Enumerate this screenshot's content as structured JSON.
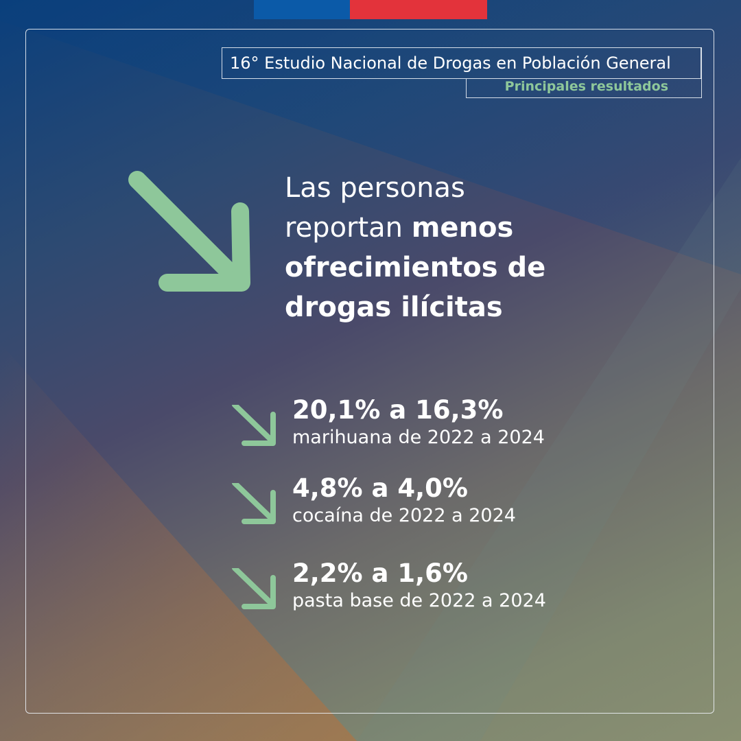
{
  "header": {
    "title": "16° Estudio Nacional de Drogas en Población General",
    "subtitle": "Principales resultados"
  },
  "headline": {
    "line1": "Las personas",
    "line2_regular": "reportan ",
    "line2_bold": "menos",
    "line3_bold": "ofrecimientos de",
    "line4_bold": "drogas ilícitas"
  },
  "stats": [
    {
      "value": "20,1% a 16,3%",
      "desc": "marihuana de 2022 a 2024",
      "icon": "arrow-down-right-icon"
    },
    {
      "value": "4,8% a 4,0%",
      "desc": "cocaína de 2022 a 2024",
      "icon": "arrow-down-right-icon"
    },
    {
      "value": "2,2% a 1,6%",
      "desc": "pasta base de 2022 a 2024",
      "icon": "arrow-down-right-icon"
    }
  ],
  "colors": {
    "accent_green": "#8ec79a",
    "flag_blue": "#0b5aa8",
    "flag_red": "#e3333b",
    "text": "#ffffff"
  }
}
